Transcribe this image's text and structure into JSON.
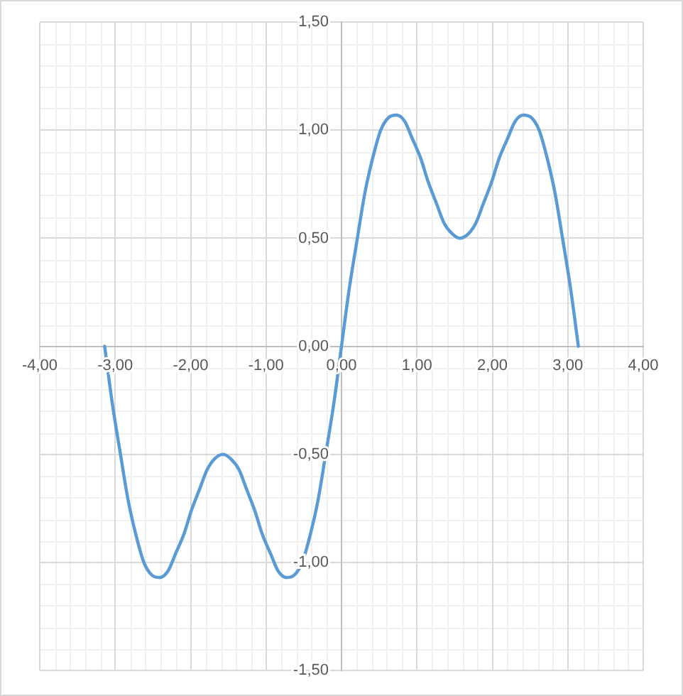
{
  "chart_data": {
    "type": "line",
    "x": [
      -3.14,
      -3.04,
      -2.93,
      -2.83,
      -2.72,
      -2.62,
      -2.51,
      -2.41,
      -2.3,
      -2.2,
      -2.09,
      -1.99,
      -1.88,
      -1.78,
      -1.68,
      -1.57,
      -1.47,
      -1.36,
      -1.26,
      -1.15,
      -1.05,
      -0.94,
      -0.84,
      -0.73,
      -0.63,
      -0.52,
      -0.42,
      -0.31,
      -0.21,
      -0.1,
      0,
      0.1,
      0.21,
      0.31,
      0.42,
      0.52,
      0.63,
      0.73,
      0.84,
      0.94,
      1.05,
      1.15,
      1.26,
      1.36,
      1.47,
      1.57,
      1.68,
      1.78,
      1.88,
      1.99,
      2.09,
      2.2,
      2.3,
      2.41,
      2.51,
      2.62,
      2.72,
      2.83,
      2.93,
      3.04,
      3.14
    ],
    "series": [
      {
        "color": "#5b9bd5",
        "values": [
          0,
          -0.26,
          -0.5,
          -0.71,
          -0.88,
          -1.0,
          -1.06,
          -1.07,
          -1.04,
          -0.96,
          -0.87,
          -0.76,
          -0.66,
          -0.57,
          -0.52,
          -0.5,
          -0.52,
          -0.57,
          -0.66,
          -0.76,
          -0.87,
          -0.96,
          -1.04,
          -1.07,
          -1.06,
          -1.0,
          -0.88,
          -0.71,
          -0.5,
          -0.26,
          0,
          0.26,
          0.5,
          0.71,
          0.88,
          1.0,
          1.06,
          1.07,
          1.04,
          0.96,
          0.87,
          0.76,
          0.66,
          0.57,
          0.52,
          0.5,
          0.52,
          0.57,
          0.66,
          0.76,
          0.87,
          0.96,
          1.04,
          1.07,
          1.06,
          1.0,
          0.88,
          0.71,
          0.5,
          0.26,
          0
        ]
      }
    ],
    "xlim": [
      -4,
      4
    ],
    "ylim": [
      -1.5,
      1.5
    ],
    "xticks": [
      {
        "value": -4,
        "label": "-4,00"
      },
      {
        "value": -3,
        "label": "-3,00"
      },
      {
        "value": -2,
        "label": "-2,00"
      },
      {
        "value": -1,
        "label": "-1,00"
      },
      {
        "value": 0,
        "label": "0,00"
      },
      {
        "value": 1,
        "label": "1,00"
      },
      {
        "value": 2,
        "label": "2,00"
      },
      {
        "value": 3,
        "label": "3,00"
      },
      {
        "value": 4,
        "label": "4,00"
      }
    ],
    "yticks": [
      {
        "value": -1.5,
        "label": "-1,50"
      },
      {
        "value": -1,
        "label": "-1,00"
      },
      {
        "value": -0.5,
        "label": "-0,50"
      },
      {
        "value": 0,
        "label": "0,00"
      },
      {
        "value": 0.5,
        "label": "0,50"
      },
      {
        "value": 1,
        "label": "1,00"
      },
      {
        "value": 1.5,
        "label": "1,50"
      }
    ],
    "grid": true,
    "marker": "none",
    "line_style": "solid"
  }
}
